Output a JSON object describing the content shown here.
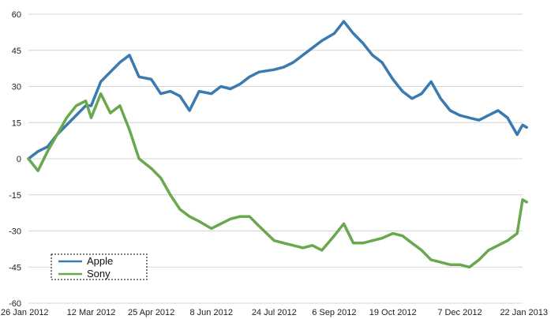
{
  "chart_data": {
    "type": "line",
    "title": "",
    "xlabel": "",
    "ylabel": "",
    "ylim": [
      -60,
      60
    ],
    "y_ticks": [
      60,
      45,
      30,
      15,
      0,
      -15,
      -30,
      -45,
      -60
    ],
    "x_tick_labels": [
      "26 Jan 2012",
      "12 Mar 2012",
      "25 Apr 2012",
      "8 Jun 2012",
      "24 Jul 2012",
      "6 Sep 2012",
      "19 Oct 2012",
      "7 Dec 2012",
      "22 Jan 2013"
    ],
    "grid": "horizontal",
    "legend_position": "bottom-left",
    "x": [
      "26 Jan 2012",
      "2 Feb 2012",
      "9 Feb 2012",
      "16 Feb 2012",
      "23 Feb 2012",
      "1 Mar 2012",
      "8 Mar 2012",
      "12 Mar 2012",
      "19 Mar 2012",
      "26 Mar 2012",
      "2 Apr 2012",
      "9 Apr 2012",
      "16 Apr 2012",
      "25 Apr 2012",
      "2 May 2012",
      "9 May 2012",
      "16 May 2012",
      "23 May 2012",
      "30 May 2012",
      "8 Jun 2012",
      "15 Jun 2012",
      "22 Jun 2012",
      "29 Jun 2012",
      "6 Jul 2012",
      "13 Jul 2012",
      "24 Jul 2012",
      "31 Jul 2012",
      "7 Aug 2012",
      "14 Aug 2012",
      "21 Aug 2012",
      "28 Aug 2012",
      "6 Sep 2012",
      "13 Sep 2012",
      "20 Sep 2012",
      "27 Sep 2012",
      "4 Oct 2012",
      "11 Oct 2012",
      "19 Oct 2012",
      "26 Oct 2012",
      "2 Nov 2012",
      "9 Nov 2012",
      "16 Nov 2012",
      "23 Nov 2012",
      "30 Nov 2012",
      "7 Dec 2012",
      "14 Dec 2012",
      "21 Dec 2012",
      "28 Dec 2012",
      "4 Jan 2013",
      "11 Jan 2013",
      "18 Jan 2013",
      "22 Jan 2013",
      "25 Jan 2013"
    ],
    "series": [
      {
        "name": "Apple",
        "color": "#3a7ab0",
        "values": [
          0,
          3,
          5,
          10,
          14,
          18,
          22,
          22,
          32,
          36,
          40,
          43,
          34,
          33,
          27,
          28,
          26,
          20,
          28,
          27,
          30,
          29,
          31,
          34,
          36,
          37,
          38,
          40,
          43,
          46,
          49,
          52,
          57,
          52,
          48,
          43,
          40,
          33,
          28,
          25,
          27,
          32,
          25,
          20,
          18,
          17,
          16,
          18,
          20,
          17,
          10,
          14,
          13
        ]
      },
      {
        "name": "Sony",
        "color": "#6aa84f",
        "values": [
          0,
          -5,
          3,
          10,
          17,
          22,
          24,
          17,
          27,
          19,
          22,
          12,
          0,
          -4,
          -8,
          -15,
          -21,
          -24,
          -26,
          -29,
          -27,
          -25,
          -24,
          -24,
          -28,
          -34,
          -35,
          -36,
          -37,
          -36,
          -38,
          -32,
          -27,
          -35,
          -35,
          -34,
          -33,
          -31,
          -32,
          -35,
          -38,
          -42,
          -43,
          -44,
          -44,
          -45,
          -42,
          -38,
          -36,
          -34,
          -31,
          -17,
          -18
        ]
      }
    ]
  }
}
